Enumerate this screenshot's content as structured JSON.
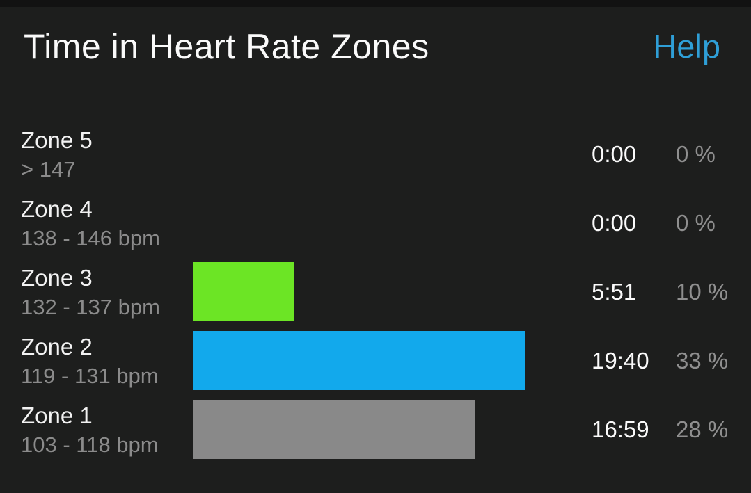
{
  "header": {
    "title": "Time in Heart Rate Zones",
    "help_label": "Help"
  },
  "colors": {
    "background": "#1d1e1d",
    "top_divider": "#121212",
    "title_text": "#fafafa",
    "help_link": "#2f9fd7",
    "zone_name_text": "#f2f2f2",
    "zone_range_text": "#8b8b8b",
    "time_text": "#fafafa",
    "percent_text": "#8f8f8f"
  },
  "chart_data": {
    "type": "bar",
    "orientation": "horizontal",
    "title": "Time in Heart Rate Zones",
    "xlabel": "",
    "ylabel": "",
    "max_percent_shown": 33,
    "zones": [
      {
        "name": "Zone 5",
        "range": "> 147",
        "time": "0:00",
        "percent_label": "0 %",
        "percent": 0,
        "bar_color": null
      },
      {
        "name": "Zone 4",
        "range": "138 - 146 bpm",
        "time": "0:00",
        "percent_label": "0 %",
        "percent": 0,
        "bar_color": null
      },
      {
        "name": "Zone 3",
        "range": "132 - 137 bpm",
        "time": "5:51",
        "percent_label": "10 %",
        "percent": 10,
        "bar_color": "#6ce525"
      },
      {
        "name": "Zone 2",
        "range": "119 - 131 bpm",
        "time": "19:40",
        "percent_label": "33 %",
        "percent": 33,
        "bar_color": "#12a9ec"
      },
      {
        "name": "Zone 1",
        "range": "103 - 118 bpm",
        "time": "16:59",
        "percent_label": "28 %",
        "percent": 28,
        "bar_color": "#898989"
      }
    ]
  }
}
